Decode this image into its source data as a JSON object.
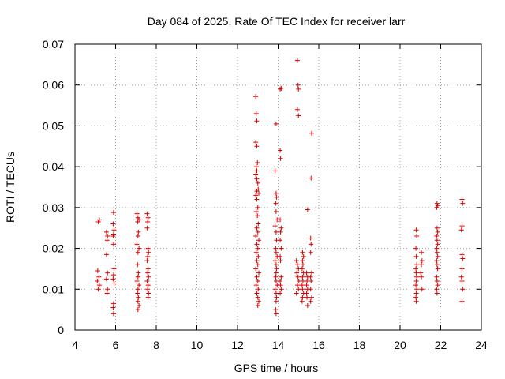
{
  "chart_data": {
    "type": "scatter",
    "title": "Day 084 of 2025, Rate Of TEC Index for receiver larr",
    "xlabel": "GPS time / hours",
    "ylabel": "ROTI / TECUs",
    "xlim": [
      4,
      24
    ],
    "ylim": [
      0,
      0.07
    ],
    "xticks": [
      "4",
      "6",
      "8",
      "10",
      "12",
      "14",
      "16",
      "18",
      "20",
      "22",
      "24"
    ],
    "yticks": [
      "0",
      "0.01",
      "0.02",
      "0.03",
      "0.04",
      "0.05",
      "0.06",
      "0.07"
    ],
    "grid": true,
    "marker": "plus",
    "color": "#dd0000",
    "series": [
      {
        "name": "ROTI",
        "points": [
          [
            5.15,
            0.0265
          ],
          [
            5.2,
            0.027
          ],
          [
            5.12,
            0.0145
          ],
          [
            5.18,
            0.013
          ],
          [
            5.1,
            0.012
          ],
          [
            5.2,
            0.011
          ],
          [
            5.15,
            0.01
          ],
          [
            5.55,
            0.024
          ],
          [
            5.6,
            0.023
          ],
          [
            5.58,
            0.022
          ],
          [
            5.55,
            0.0185
          ],
          [
            5.6,
            0.014
          ],
          [
            5.55,
            0.0125
          ],
          [
            5.6,
            0.01
          ],
          [
            5.58,
            0.009
          ],
          [
            5.9,
            0.0288
          ],
          [
            5.88,
            0.026
          ],
          [
            5.92,
            0.0245
          ],
          [
            5.9,
            0.0235
          ],
          [
            5.88,
            0.023
          ],
          [
            5.9,
            0.021
          ],
          [
            5.92,
            0.015
          ],
          [
            5.9,
            0.0135
          ],
          [
            5.88,
            0.0125
          ],
          [
            5.92,
            0.0115
          ],
          [
            5.9,
            0.0065
          ],
          [
            5.88,
            0.0055
          ],
          [
            5.9,
            0.004
          ],
          [
            7.05,
            0.0285
          ],
          [
            7.1,
            0.0275
          ],
          [
            7.15,
            0.027
          ],
          [
            7.08,
            0.0265
          ],
          [
            7.12,
            0.024
          ],
          [
            7.1,
            0.023
          ],
          [
            7.05,
            0.021
          ],
          [
            7.15,
            0.02
          ],
          [
            7.1,
            0.019
          ],
          [
            7.08,
            0.016
          ],
          [
            7.12,
            0.014
          ],
          [
            7.1,
            0.013
          ],
          [
            7.05,
            0.012
          ],
          [
            7.15,
            0.011
          ],
          [
            7.1,
            0.01
          ],
          [
            7.08,
            0.009
          ],
          [
            7.12,
            0.008
          ],
          [
            7.1,
            0.007
          ],
          [
            7.15,
            0.006
          ],
          [
            7.1,
            0.005
          ],
          [
            7.55,
            0.0285
          ],
          [
            7.6,
            0.0275
          ],
          [
            7.58,
            0.0265
          ],
          [
            7.55,
            0.025
          ],
          [
            7.6,
            0.02
          ],
          [
            7.62,
            0.019
          ],
          [
            7.58,
            0.018
          ],
          [
            7.55,
            0.017
          ],
          [
            7.6,
            0.015
          ],
          [
            7.58,
            0.014
          ],
          [
            7.62,
            0.013
          ],
          [
            7.55,
            0.012
          ],
          [
            7.6,
            0.011
          ],
          [
            7.58,
            0.01
          ],
          [
            7.62,
            0.009
          ],
          [
            7.6,
            0.008
          ],
          [
            12.9,
            0.0572
          ],
          [
            12.92,
            0.053
          ],
          [
            12.95,
            0.0512
          ],
          [
            12.9,
            0.046
          ],
          [
            12.95,
            0.045
          ],
          [
            12.98,
            0.041
          ],
          [
            12.92,
            0.04
          ],
          [
            12.95,
            0.039
          ],
          [
            12.9,
            0.038
          ],
          [
            12.95,
            0.037
          ],
          [
            13.0,
            0.036
          ],
          [
            13.02,
            0.0345
          ],
          [
            12.95,
            0.034
          ],
          [
            13.05,
            0.0335
          ],
          [
            12.9,
            0.033
          ],
          [
            12.95,
            0.032
          ],
          [
            13.0,
            0.03
          ],
          [
            12.92,
            0.029
          ],
          [
            12.98,
            0.028
          ],
          [
            13.02,
            0.026
          ],
          [
            12.95,
            0.025
          ],
          [
            13.0,
            0.024
          ],
          [
            12.9,
            0.023
          ],
          [
            13.05,
            0.022
          ],
          [
            12.95,
            0.021
          ],
          [
            13.0,
            0.02
          ],
          [
            12.92,
            0.019
          ],
          [
            13.02,
            0.018
          ],
          [
            12.95,
            0.017
          ],
          [
            13.0,
            0.016
          ],
          [
            12.9,
            0.015
          ],
          [
            13.05,
            0.014
          ],
          [
            12.95,
            0.013
          ],
          [
            13.0,
            0.012
          ],
          [
            12.92,
            0.011
          ],
          [
            13.02,
            0.01
          ],
          [
            12.95,
            0.009
          ],
          [
            13.0,
            0.008
          ],
          [
            13.05,
            0.007
          ],
          [
            13.0,
            0.006
          ],
          [
            13.9,
            0.0505
          ],
          [
            13.85,
            0.039
          ],
          [
            13.9,
            0.0335
          ],
          [
            13.92,
            0.0325
          ],
          [
            13.88,
            0.031
          ],
          [
            13.9,
            0.029
          ],
          [
            13.95,
            0.027
          ],
          [
            13.85,
            0.0255
          ],
          [
            13.9,
            0.024
          ],
          [
            13.92,
            0.022
          ],
          [
            13.88,
            0.02
          ],
          [
            13.9,
            0.019
          ],
          [
            13.95,
            0.018
          ],
          [
            13.85,
            0.017
          ],
          [
            13.9,
            0.016
          ],
          [
            13.92,
            0.015
          ],
          [
            13.9,
            0.014
          ],
          [
            13.88,
            0.013
          ],
          [
            13.9,
            0.012
          ],
          [
            13.95,
            0.011
          ],
          [
            13.85,
            0.01
          ],
          [
            13.9,
            0.009
          ],
          [
            13.92,
            0.008
          ],
          [
            13.9,
            0.007
          ],
          [
            13.88,
            0.005
          ],
          [
            13.9,
            0.004
          ],
          [
            14.1,
            0.059
          ],
          [
            14.15,
            0.0592
          ],
          [
            14.1,
            0.044
          ],
          [
            14.12,
            0.042
          ],
          [
            14.1,
            0.027
          ],
          [
            14.15,
            0.025
          ],
          [
            14.12,
            0.024
          ],
          [
            14.1,
            0.022
          ],
          [
            14.15,
            0.02
          ],
          [
            14.1,
            0.018
          ],
          [
            14.12,
            0.017
          ],
          [
            14.15,
            0.013
          ],
          [
            14.1,
            0.012
          ],
          [
            14.12,
            0.011
          ],
          [
            14.15,
            0.01
          ],
          [
            14.1,
            0.009
          ],
          [
            14.95,
            0.066
          ],
          [
            14.98,
            0.06
          ],
          [
            15.0,
            0.059
          ],
          [
            14.95,
            0.054
          ],
          [
            15.0,
            0.0525
          ],
          [
            14.9,
            0.017
          ],
          [
            14.95,
            0.016
          ],
          [
            15.0,
            0.015
          ],
          [
            14.92,
            0.014
          ],
          [
            14.98,
            0.013
          ],
          [
            15.02,
            0.012
          ],
          [
            14.95,
            0.011
          ],
          [
            15.0,
            0.01
          ],
          [
            14.9,
            0.009
          ],
          [
            15.2,
            0.019
          ],
          [
            15.25,
            0.018
          ],
          [
            15.2,
            0.017
          ],
          [
            15.22,
            0.016
          ],
          [
            15.18,
            0.015
          ],
          [
            15.25,
            0.014
          ],
          [
            15.2,
            0.013
          ],
          [
            15.22,
            0.012
          ],
          [
            15.18,
            0.011
          ],
          [
            15.2,
            0.01
          ],
          [
            15.25,
            0.009
          ],
          [
            15.2,
            0.008
          ],
          [
            15.18,
            0.007
          ],
          [
            15.45,
            0.0295
          ],
          [
            15.4,
            0.014
          ],
          [
            15.45,
            0.013
          ],
          [
            15.42,
            0.012
          ],
          [
            15.4,
            0.011
          ],
          [
            15.45,
            0.01
          ],
          [
            15.4,
            0.009
          ],
          [
            15.42,
            0.008
          ],
          [
            15.45,
            0.006
          ],
          [
            15.65,
            0.0482
          ],
          [
            15.62,
            0.0372
          ],
          [
            15.6,
            0.0225
          ],
          [
            15.62,
            0.021
          ],
          [
            15.6,
            0.019
          ],
          [
            15.65,
            0.014
          ],
          [
            15.6,
            0.013
          ],
          [
            15.62,
            0.012
          ],
          [
            15.6,
            0.01
          ],
          [
            15.65,
            0.008
          ],
          [
            15.6,
            0.007
          ],
          [
            20.8,
            0.0245
          ],
          [
            20.82,
            0.023
          ],
          [
            20.78,
            0.02
          ],
          [
            20.8,
            0.018
          ],
          [
            20.82,
            0.016
          ],
          [
            20.78,
            0.015
          ],
          [
            20.8,
            0.014
          ],
          [
            20.82,
            0.013
          ],
          [
            20.8,
            0.012
          ],
          [
            20.78,
            0.011
          ],
          [
            20.82,
            0.01
          ],
          [
            20.8,
            0.009
          ],
          [
            20.78,
            0.008
          ],
          [
            20.8,
            0.007
          ],
          [
            21.05,
            0.019
          ],
          [
            21.08,
            0.017
          ],
          [
            21.05,
            0.016
          ],
          [
            21.02,
            0.014
          ],
          [
            21.05,
            0.013
          ],
          [
            21.08,
            0.01
          ],
          [
            21.82,
            0.031
          ],
          [
            21.85,
            0.0305
          ],
          [
            21.8,
            0.03
          ],
          [
            21.82,
            0.025
          ],
          [
            21.85,
            0.024
          ],
          [
            21.8,
            0.023
          ],
          [
            21.82,
            0.022
          ],
          [
            21.85,
            0.021
          ],
          [
            21.8,
            0.02
          ],
          [
            21.82,
            0.019
          ],
          [
            21.85,
            0.018
          ],
          [
            21.8,
            0.017
          ],
          [
            21.82,
            0.016
          ],
          [
            21.85,
            0.015
          ],
          [
            21.8,
            0.013
          ],
          [
            21.82,
            0.012
          ],
          [
            21.85,
            0.011
          ],
          [
            21.8,
            0.01
          ],
          [
            21.82,
            0.009
          ],
          [
            23.05,
            0.032
          ],
          [
            23.08,
            0.031
          ],
          [
            23.05,
            0.0255
          ],
          [
            23.02,
            0.0245
          ],
          [
            23.05,
            0.0185
          ],
          [
            23.08,
            0.0175
          ],
          [
            23.05,
            0.015
          ],
          [
            23.02,
            0.013
          ],
          [
            23.05,
            0.012
          ],
          [
            23.08,
            0.01
          ],
          [
            23.05,
            0.007
          ]
        ]
      }
    ]
  }
}
